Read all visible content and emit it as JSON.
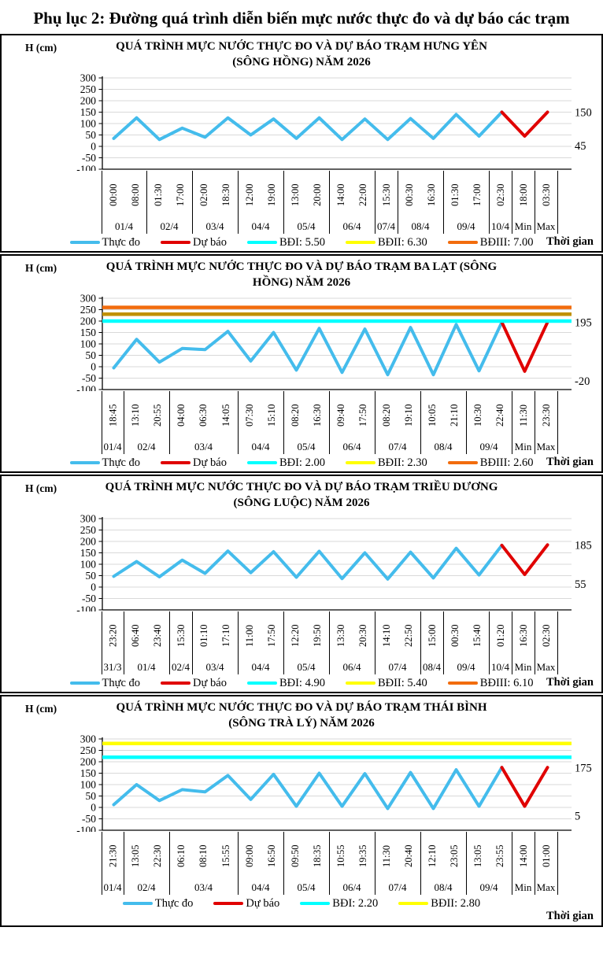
{
  "page": {
    "title": "Phụ lục 2: Đường quá trình diễn biến mực nước thực đo và dự báo các trạm",
    "y_axis_label": "H (cm)",
    "x_axis_label": "Thời gian"
  },
  "colors": {
    "measured": "#44BCEC",
    "forecast": "#E00000",
    "bd1_cyan": "#00FFFF",
    "bd2_yellow": "#FFFF00",
    "bd2_dark_gold": "#C09100",
    "bd3_orange": "#F26C0D",
    "grid": "#D9D9D9"
  },
  "chart_data": [
    {
      "type": "line",
      "title": "QUÁ TRÌNH MỰC NƯỚC THỰC ĐO VÀ DỰ BÁO TRẠM  HƯNG YÊN (SÔNG HỒNG) NĂM 2026",
      "ylabel": "H (cm)",
      "xlabel": "Thời gian",
      "ylim": [
        -100,
        300
      ],
      "ytick_step": 50,
      "grid": true,
      "legend_position": "bottom",
      "x_times": [
        "00:00",
        "08:00",
        "01:30",
        "17:00",
        "02:00",
        "18:30",
        "12:00",
        "19:00",
        "13:00",
        "20:00",
        "14:00",
        "22:00",
        "15:30",
        "00:30",
        "16:30",
        "01:30",
        "17:00",
        "02:30",
        "18:00",
        "03:30"
      ],
      "date_groups": [
        {
          "label": "01/4",
          "span": 2
        },
        {
          "label": "02/4",
          "span": 2
        },
        {
          "label": "03/4",
          "span": 2
        },
        {
          "label": "04/4",
          "span": 2
        },
        {
          "label": "05/4",
          "span": 2
        },
        {
          "label": "06/4",
          "span": 2
        },
        {
          "label": "07/4",
          "span": 1
        },
        {
          "label": "08/4",
          "span": 2
        },
        {
          "label": "09/4",
          "span": 2
        },
        {
          "label": "10/4",
          "span": 1
        },
        {
          "label": "Min",
          "span": 1
        },
        {
          "label": "Max",
          "span": 1
        }
      ],
      "series": [
        {
          "name": "Thực đo",
          "color": "#44BCEC",
          "start_index": 0,
          "values": [
            35,
            125,
            30,
            80,
            40,
            125,
            50,
            120,
            35,
            125,
            30,
            120,
            30,
            122,
            35,
            140,
            45,
            150
          ]
        },
        {
          "name": "Dự báo",
          "color": "#E00000",
          "start_index": 17,
          "values": [
            150,
            45,
            150
          ]
        }
      ],
      "ref_lines": [],
      "annotations": {
        "max": {
          "text": "150",
          "value": 150
        },
        "min": {
          "text": "45",
          "value": 45
        }
      },
      "legend": [
        {
          "label": "Thực đo",
          "color": "#44BCEC"
        },
        {
          "label": "Dự báo",
          "color": "#E00000"
        },
        {
          "label": "BĐI: 5.50",
          "color": "#00FFFF"
        },
        {
          "label": "BĐII: 6.30",
          "color": "#FFFF00"
        },
        {
          "label": "BĐIII: 7.00",
          "color": "#F26C0D"
        }
      ]
    },
    {
      "type": "line",
      "title": "QUÁ TRÌNH MỰC NƯỚC THỰC ĐO VÀ DỰ BÁO TRẠM  BA LẠT (SÔNG HỒNG) NĂM 2026",
      "ylabel": "H (cm)",
      "xlabel": "Thời gian",
      "ylim": [
        -100,
        300
      ],
      "ytick_step": 50,
      "grid": true,
      "legend_position": "bottom",
      "x_times": [
        "18:45",
        "13:10",
        "20:55",
        "04:00",
        "06:30",
        "14:05",
        "07:30",
        "15:10",
        "08:20",
        "16:30",
        "09:40",
        "17:50",
        "08:20",
        "19:10",
        "10:05",
        "21:10",
        "10:30",
        "22:40",
        "11:30",
        "23:30"
      ],
      "date_groups": [
        {
          "label": "01/4",
          "span": 1
        },
        {
          "label": "02/4",
          "span": 2
        },
        {
          "label": "03/4",
          "span": 3
        },
        {
          "label": "04/4",
          "span": 2
        },
        {
          "label": "05/4",
          "span": 2
        },
        {
          "label": "06/4",
          "span": 2
        },
        {
          "label": "07/4",
          "span": 2
        },
        {
          "label": "08/4",
          "span": 2
        },
        {
          "label": "09/4",
          "span": 2
        },
        {
          "label": "Min",
          "span": 1
        },
        {
          "label": "Max",
          "span": 1
        }
      ],
      "series": [
        {
          "name": "Thực đo",
          "color": "#44BCEC",
          "start_index": 0,
          "values": [
            -5,
            120,
            20,
            80,
            75,
            155,
            25,
            150,
            -15,
            168,
            -25,
            165,
            -35,
            172,
            -35,
            185,
            -18,
            195
          ]
        },
        {
          "name": "Dự báo",
          "color": "#E00000",
          "start_index": 17,
          "values": [
            195,
            -20,
            195
          ]
        }
      ],
      "ref_lines": [
        {
          "name": "BĐI",
          "value": 200,
          "color": "#00FFFF"
        },
        {
          "name": "BĐII",
          "value": 230,
          "color": "#C09100"
        },
        {
          "name": "BĐIII",
          "value": 260,
          "color": "#F26C0D"
        }
      ],
      "annotations": {
        "max": {
          "text": "195",
          "value": 195
        },
        "min": {
          "text": "-20",
          "value": -20
        }
      },
      "legend": [
        {
          "label": "Thực đo",
          "color": "#44BCEC"
        },
        {
          "label": "Dự báo",
          "color": "#E00000"
        },
        {
          "label": "BĐI: 2.00",
          "color": "#00FFFF"
        },
        {
          "label": "BĐII: 2.30",
          "color": "#FFFF00"
        },
        {
          "label": "BĐIII: 2.60",
          "color": "#F26C0D"
        }
      ]
    },
    {
      "type": "line",
      "title": "QUÁ TRÌNH MỰC NƯỚC THỰC ĐO VÀ DỰ BÁO TRẠM  TRIỀU DƯƠNG (SÔNG  LUỘC) NĂM 2026",
      "ylabel": "H (cm)",
      "xlabel": "Thời gian",
      "ylim": [
        -100,
        300
      ],
      "ytick_step": 50,
      "grid": true,
      "legend_position": "bottom",
      "x_times": [
        "23:20",
        "06:40",
        "23:40",
        "15:30",
        "01:10",
        "17:10",
        "11:00",
        "17:50",
        "12:20",
        "19:50",
        "13:30",
        "20:30",
        "14:10",
        "22:50",
        "15:00",
        "00:30",
        "15:40",
        "01:20",
        "16:30",
        "02:30"
      ],
      "date_groups": [
        {
          "label": "31/3",
          "span": 1
        },
        {
          "label": "01/4",
          "span": 2
        },
        {
          "label": "02/4",
          "span": 1
        },
        {
          "label": "03/4",
          "span": 2
        },
        {
          "label": "04/4",
          "span": 2
        },
        {
          "label": "05/4",
          "span": 2
        },
        {
          "label": "06/4",
          "span": 2
        },
        {
          "label": "07/4",
          "span": 2
        },
        {
          "label": "08/4",
          "span": 1
        },
        {
          "label": "09/4",
          "span": 2
        },
        {
          "label": "10/4",
          "span": 1
        },
        {
          "label": "Min",
          "span": 1
        },
        {
          "label": "Max",
          "span": 1
        }
      ],
      "series": [
        {
          "name": "Thực đo",
          "color": "#44BCEC",
          "start_index": 0,
          "values": [
            47,
            112,
            45,
            118,
            60,
            158,
            63,
            155,
            43,
            157,
            37,
            150,
            35,
            153,
            40,
            170,
            53,
            183
          ]
        },
        {
          "name": "Dự báo",
          "color": "#E00000",
          "start_index": 17,
          "values": [
            183,
            55,
            185
          ]
        }
      ],
      "ref_lines": [],
      "annotations": {
        "max": {
          "text": "185",
          "value": 185
        },
        "min": {
          "text": "55",
          "value": 55
        }
      },
      "legend": [
        {
          "label": "Thực đo",
          "color": "#44BCEC"
        },
        {
          "label": "Dự báo",
          "color": "#E00000"
        },
        {
          "label": "BĐI: 4.90",
          "color": "#00FFFF"
        },
        {
          "label": "BĐII: 5.40",
          "color": "#FFFF00"
        },
        {
          "label": "BĐIII: 6.10",
          "color": "#F26C0D"
        }
      ]
    },
    {
      "type": "line",
      "title": "QUÁ TRÌNH MỰC NƯỚC THỰC ĐO VÀ DỰ BÁO TRẠM  THÁI BÌNH (SÔNG TRÀ LÝ) NĂM 2026",
      "ylabel": "H (cm)",
      "xlabel": "Thời gian",
      "ylim": [
        -100,
        300
      ],
      "ytick_step": 50,
      "grid": true,
      "legend_position": "bottom",
      "x_times": [
        "21:30",
        "13:05",
        "22:30",
        "06:10",
        "08:10",
        "15:55",
        "09:00",
        "16:50",
        "09:50",
        "18:35",
        "10:55",
        "19:35",
        "11:30",
        "20:40",
        "12:10",
        "23:05",
        "13:05",
        "23:55",
        "14:00",
        "01:00"
      ],
      "date_groups": [
        {
          "label": "01/4",
          "span": 1
        },
        {
          "label": "02/4",
          "span": 2
        },
        {
          "label": "03/4",
          "span": 3
        },
        {
          "label": "04/4",
          "span": 2
        },
        {
          "label": "05/4",
          "span": 2
        },
        {
          "label": "06/4",
          "span": 2
        },
        {
          "label": "07/4",
          "span": 2
        },
        {
          "label": "08/4",
          "span": 2
        },
        {
          "label": "09/4",
          "span": 2
        },
        {
          "label": "Min",
          "span": 1
        },
        {
          "label": "Max",
          "span": 1
        }
      ],
      "series": [
        {
          "name": "Thực đo",
          "color": "#44BCEC",
          "start_index": 0,
          "values": [
            12,
            100,
            30,
            78,
            68,
            140,
            35,
            145,
            5,
            150,
            5,
            148,
            -5,
            153,
            -5,
            165,
            5,
            175
          ]
        },
        {
          "name": "Dự báo",
          "color": "#E00000",
          "start_index": 17,
          "values": [
            175,
            5,
            175
          ]
        }
      ],
      "ref_lines": [
        {
          "name": "BĐI",
          "value": 220,
          "color": "#00FFFF"
        },
        {
          "name": "BĐII",
          "value": 280,
          "color": "#FFFF00"
        }
      ],
      "annotations": {
        "max": {
          "text": "175",
          "value": 175
        },
        "min": {
          "text": "5",
          "value": 5
        }
      },
      "legend": [
        {
          "label": "Thực đo",
          "color": "#44BCEC"
        },
        {
          "label": "Dự báo",
          "color": "#E00000"
        },
        {
          "label": "BĐI: 2.20",
          "color": "#00FFFF"
        },
        {
          "label": "BĐII: 2.80",
          "color": "#FFFF00"
        }
      ]
    }
  ]
}
